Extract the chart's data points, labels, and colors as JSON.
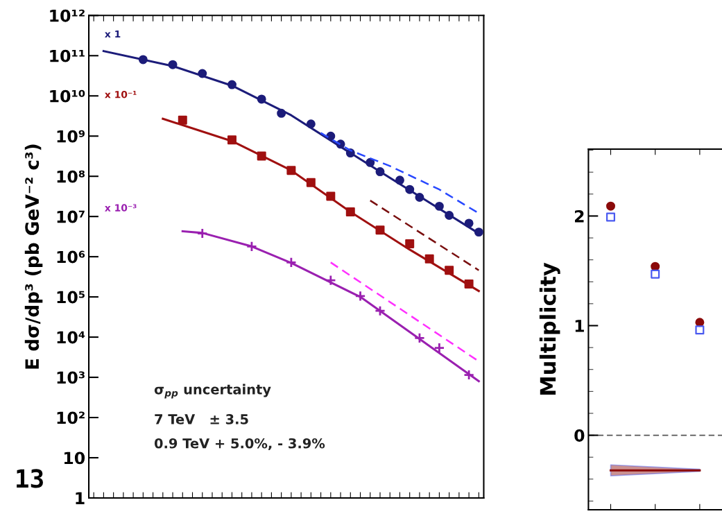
{
  "chart_data": [
    {
      "type": "scatter",
      "ylabel": "E dσ/dp³ (pb GeV⁻² c³)",
      "log": "y",
      "ylim": [
        1,
        1000000000000.0
      ],
      "tick_labels": "y",
      "grid": false,
      "legend": false,
      "yticks": [
        1,
        10,
        {
          "value": 100,
          "label": "10²"
        },
        {
          "value": 1000,
          "label": "10³"
        },
        {
          "value": 10000,
          "label": "10⁴"
        },
        {
          "value": 100000,
          "label": "10⁵"
        },
        {
          "value": 1000000,
          "label": "10⁶"
        },
        {
          "value": 10000000,
          "label": "10⁷"
        },
        {
          "value": 100000000,
          "label": "10⁸"
        },
        {
          "value": 1000000000,
          "label": "10⁹"
        },
        {
          "value": 10000000000,
          "label": "10¹⁰"
        },
        {
          "value": 100000000000,
          "label": "10¹¹"
        },
        {
          "value": 1000000000000,
          "label": "10¹²"
        }
      ],
      "categories": [
        null,
        null,
        null,
        null,
        null,
        null,
        null,
        null,
        null,
        null,
        null,
        null,
        null,
        null,
        null,
        null,
        null,
        null,
        null,
        null,
        null,
        null,
        null,
        null,
        null,
        null,
        null,
        null,
        null,
        null,
        null,
        null,
        null,
        null,
        null,
        null,
        null,
        null,
        null,
        null
      ],
      "series": [
        {
          "name": "x 1",
          "marker": "circle",
          "color": "#1c1c7a",
          "values": [
            null,
            null,
            null,
            null,
            null,
            80000000000.0,
            null,
            null,
            60000000000.0,
            null,
            null,
            36000000000.0,
            null,
            null,
            19000000000.0,
            null,
            null,
            8300000000.0,
            null,
            3700000000.0,
            null,
            null,
            2000000000.0,
            null,
            1000000000.0,
            630000000.0,
            380000000.0,
            null,
            220000000.0,
            130000000.0,
            null,
            80000000.0,
            47000000.0,
            30000000.0,
            null,
            18000000.0,
            10700000.0,
            null,
            6800000.0,
            4100000.0
          ]
        },
        {
          "type": "line",
          "line_style": "solid",
          "color": "#1c1c7a",
          "values": [
            null,
            130000000000.0,
            null,
            null,
            null,
            null,
            null,
            null,
            55000000000.0,
            null,
            null,
            null,
            null,
            null,
            18000000000.0,
            null,
            null,
            null,
            null,
            null,
            3300000000.0,
            null,
            null,
            null,
            null,
            null,
            380000000.0,
            null,
            null,
            null,
            null,
            null,
            45000000.0,
            null,
            null,
            null,
            null,
            null,
            null,
            3800000.0
          ]
        },
        {
          "type": "line",
          "line_style": "dashed",
          "color": "#2848ff",
          "values": [
            null,
            null,
            null,
            null,
            null,
            null,
            null,
            null,
            null,
            null,
            null,
            null,
            null,
            null,
            null,
            null,
            null,
            null,
            null,
            null,
            null,
            null,
            null,
            1200000000.0,
            null,
            null,
            440000000.0,
            null,
            null,
            null,
            180000000.0,
            null,
            null,
            null,
            null,
            47000000.0,
            null,
            null,
            null,
            12000000.0
          ]
        },
        {
          "name": "x 10⁻¹",
          "marker": "square",
          "color": "#a01010",
          "values": [
            null,
            null,
            null,
            null,
            null,
            null,
            null,
            null,
            null,
            2500000000.0,
            null,
            null,
            null,
            null,
            800000000.0,
            null,
            null,
            320000000.0,
            null,
            null,
            140000000.0,
            null,
            70000000.0,
            null,
            32000000.0,
            null,
            13000000.0,
            null,
            null,
            4600000.0,
            null,
            null,
            2100000.0,
            null,
            880000.0,
            null,
            460000.0,
            null,
            210000.0,
            null
          ]
        },
        {
          "type": "line",
          "line_style": "solid",
          "color": "#a01010",
          "values": [
            null,
            null,
            null,
            null,
            null,
            null,
            null,
            2700000000.0,
            null,
            null,
            null,
            null,
            null,
            null,
            750000000.0,
            null,
            null,
            null,
            null,
            null,
            140000000.0,
            null,
            null,
            null,
            null,
            null,
            13000000.0,
            null,
            null,
            null,
            null,
            null,
            1500000.0,
            null,
            null,
            null,
            null,
            null,
            null,
            140000.0
          ]
        },
        {
          "type": "line",
          "line_style": "dashed",
          "color": "#7a1010",
          "values": [
            null,
            null,
            null,
            null,
            null,
            null,
            null,
            null,
            null,
            null,
            null,
            null,
            null,
            null,
            null,
            null,
            null,
            null,
            null,
            null,
            null,
            null,
            null,
            null,
            null,
            null,
            null,
            null,
            25000000.0,
            null,
            null,
            null,
            null,
            null,
            null,
            null,
            null,
            null,
            null,
            460000.0
          ]
        },
        {
          "name": "x 10⁻³",
          "marker": "cross",
          "color": "#9a20b0",
          "values": [
            null,
            null,
            null,
            null,
            null,
            null,
            null,
            null,
            null,
            null,
            null,
            3800000.0,
            null,
            null,
            null,
            null,
            1800000.0,
            null,
            null,
            null,
            720000.0,
            null,
            null,
            null,
            260000.0,
            null,
            null,
            105000.0,
            null,
            45000.0,
            null,
            null,
            null,
            9500.0,
            null,
            5400.0,
            null,
            null,
            1150.0,
            null
          ]
        },
        {
          "type": "line",
          "line_style": "solid",
          "color": "#9a20b0",
          "values": [
            null,
            null,
            null,
            null,
            null,
            null,
            null,
            null,
            null,
            4300000.0,
            null,
            3900000.0,
            null,
            null,
            null,
            null,
            1800000.0,
            null,
            null,
            null,
            700000.0,
            null,
            null,
            null,
            null,
            null,
            null,
            100000.0,
            null,
            null,
            null,
            null,
            null,
            9000.0,
            null,
            null,
            null,
            null,
            null,
            800.0
          ]
        },
        {
          "type": "line",
          "line_style": "dashed",
          "color": "#ff30ff",
          "values": [
            null,
            null,
            null,
            null,
            null,
            null,
            null,
            null,
            null,
            null,
            null,
            null,
            null,
            null,
            null,
            null,
            null,
            null,
            null,
            null,
            null,
            null,
            null,
            null,
            720000.0,
            null,
            null,
            null,
            null,
            null,
            null,
            null,
            null,
            null,
            null,
            null,
            null,
            null,
            null,
            2500.0
          ]
        }
      ],
      "annotations": [
        "σ$_{pp}$ uncertainty",
        "7 TeV   ± 3.5",
        "0.9 TeV + 5.0%, - 3.9%",
        "13"
      ]
    },
    {
      "type": "scatter",
      "ylabel": "Multiplicity",
      "ylim": [
        -0.68,
        2.61
      ],
      "yticks": [
        0,
        1,
        2
      ],
      "tick_labels": "y",
      "grid": false,
      "legend": false,
      "categories": [
        null,
        null,
        null
      ],
      "ref_lines": [
        {
          "axis": "y",
          "value": 0,
          "line_style": "dashed",
          "color": "#555555"
        }
      ],
      "series": [
        {
          "marker": "circle",
          "color": "#8b0a0a",
          "values": [
            2.09,
            1.54,
            1.03
          ]
        },
        {
          "marker": "square",
          "color": "#4a5af0",
          "values": [
            1.99,
            1.47,
            0.96
          ]
        },
        {
          "type": "line",
          "line_style": "solid",
          "color": "#8b0a0a",
          "values": [
            -0.32,
            -0.32,
            -0.32
          ],
          "lower": [
            -0.37,
            -0.35,
            -0.33
          ],
          "upper": [
            -0.27,
            -0.29,
            -0.31
          ]
        }
      ]
    }
  ]
}
